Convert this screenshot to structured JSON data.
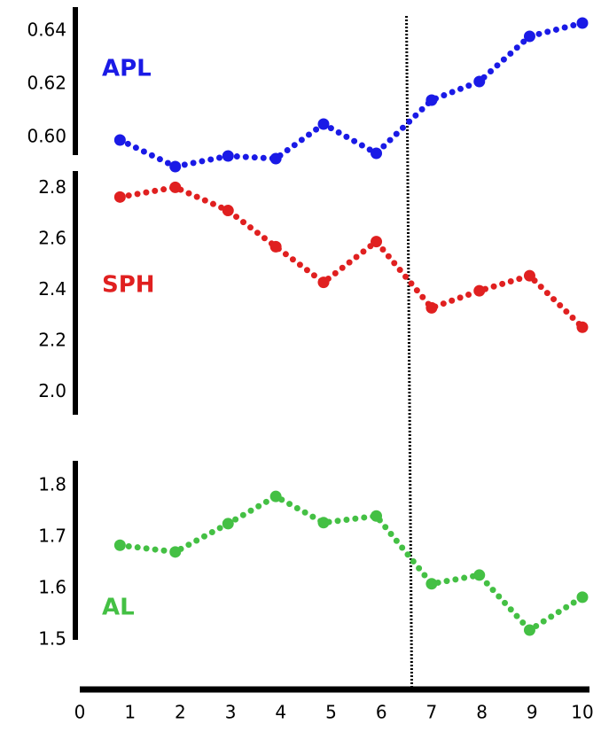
{
  "chart_data": {
    "type": "line",
    "x": [
      0.8,
      1.9,
      2.95,
      3.9,
      4.85,
      5.9,
      7,
      7.95,
      8.95,
      10
    ],
    "xlim": [
      0,
      10
    ],
    "xticks": [
      0,
      1,
      2,
      3,
      4,
      5,
      6,
      7,
      8,
      9,
      10
    ],
    "vline": 6.5,
    "panels": [
      {
        "name": "APL",
        "color": "#1a1ae6",
        "values": [
          0.599,
          0.589,
          0.593,
          0.592,
          0.605,
          0.594,
          0.614,
          0.621,
          0.638,
          0.643
        ],
        "ylim": [
          0.59,
          0.65
        ],
        "yticks": [
          {
            "value": 0.6,
            "label": "0.60"
          },
          0.62,
          0.64
        ]
      },
      {
        "name": "SPH",
        "color": "#e02020",
        "values": [
          2.765,
          2.803,
          2.712,
          2.57,
          2.43,
          2.59,
          2.33,
          2.397,
          2.456,
          2.254
        ],
        "ylim": [
          1.9,
          2.9
        ],
        "yticks": [
          {
            "value": 2,
            "label": "2.0"
          },
          2.2,
          2.4,
          2.6,
          2.8
        ]
      },
      {
        "name": "AL",
        "color": "#44c044",
        "values": [
          1.684,
          1.671,
          1.726,
          1.779,
          1.728,
          1.741,
          1.609,
          1.626,
          1.519,
          1.583
        ],
        "ylim": [
          1.5,
          1.85
        ],
        "yticks": [
          1.5,
          1.6,
          1.7,
          1.8
        ]
      }
    ]
  }
}
